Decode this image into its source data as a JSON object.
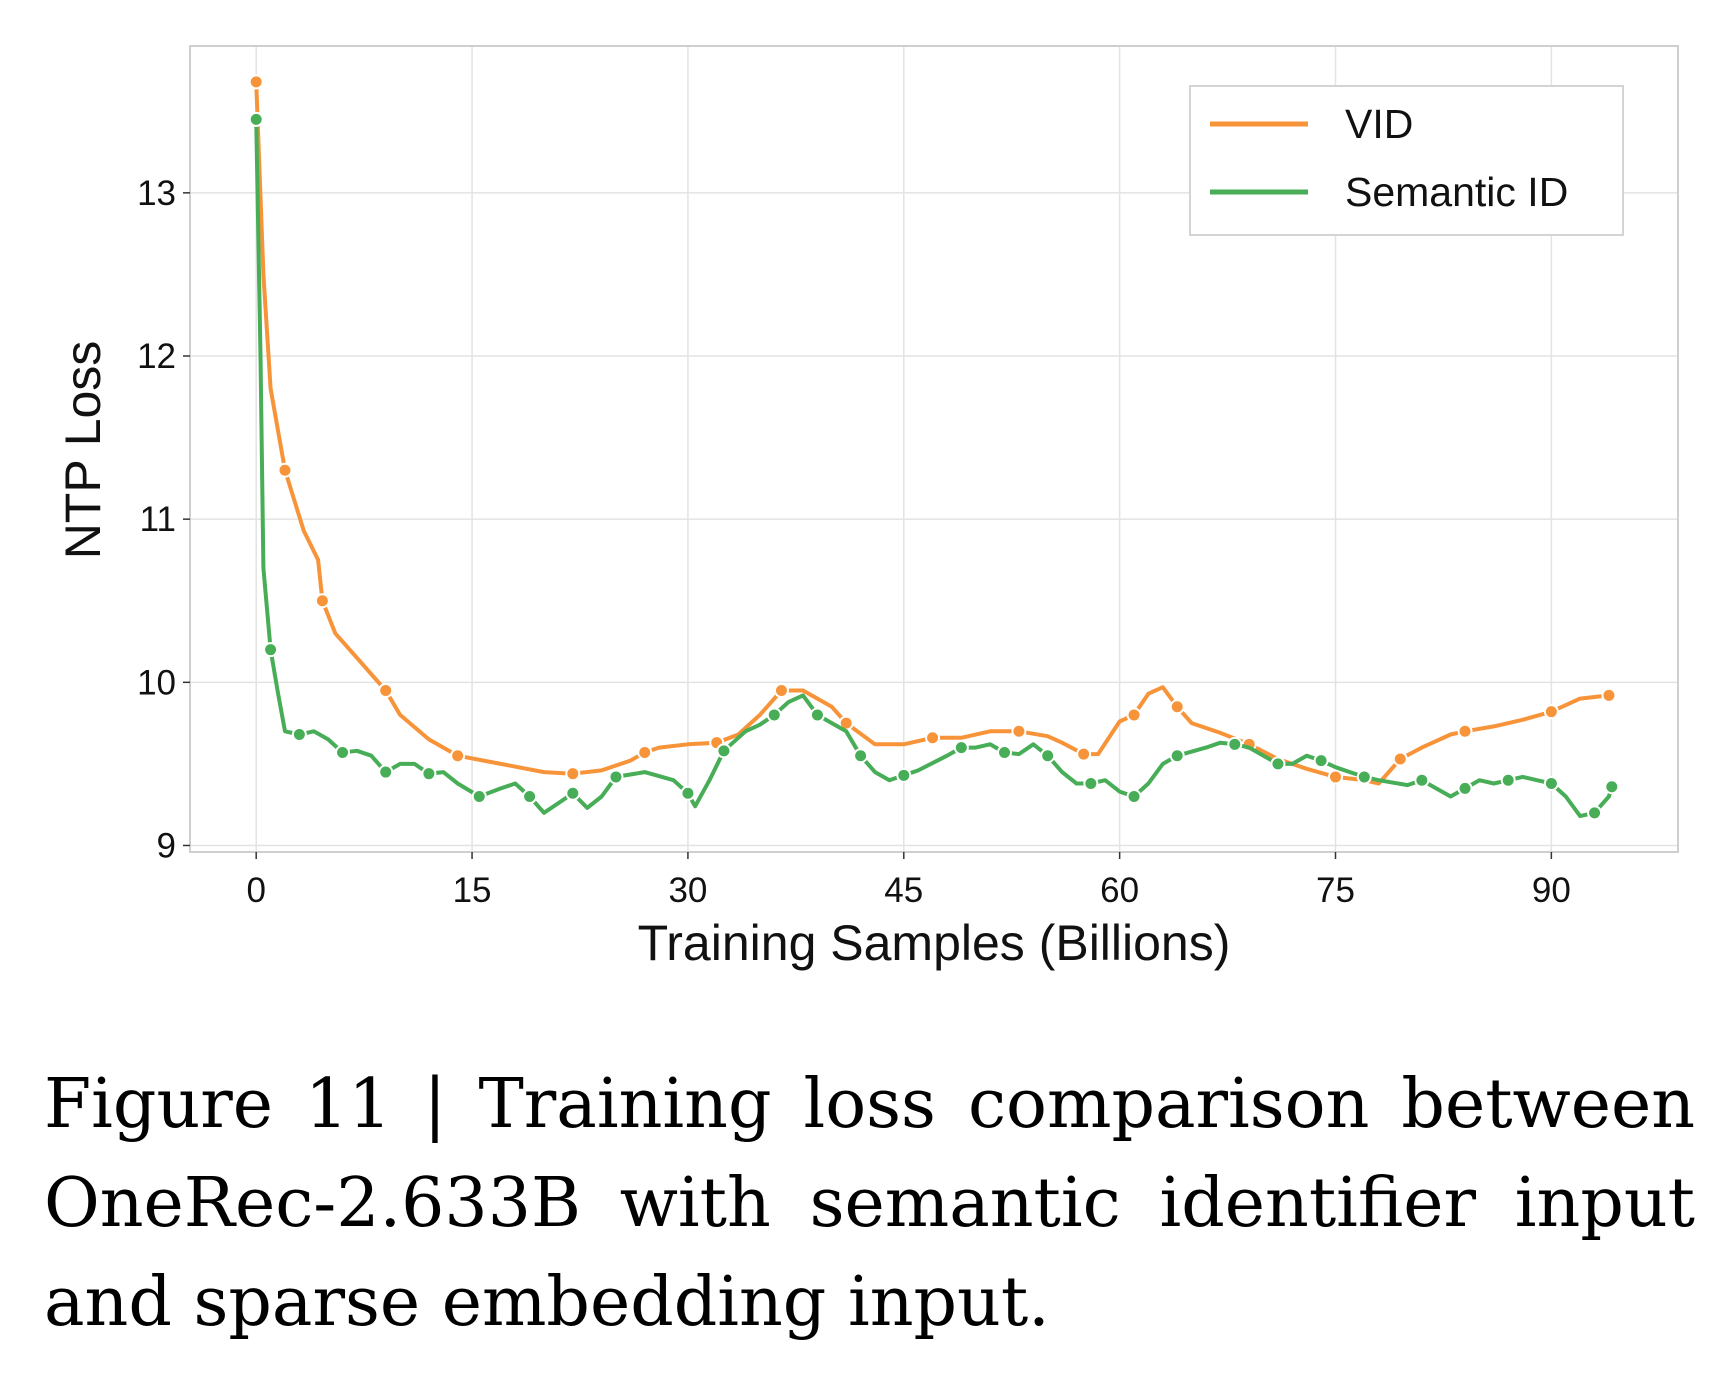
{
  "chart_data": {
    "type": "line",
    "title": "",
    "xlabel": "Training Samples (Billions)",
    "ylabel": "NTP Loss",
    "xlim": [
      -4.6,
      98.8
    ],
    "ylim": [
      8.96,
      13.9
    ],
    "xticks": [
      0,
      15,
      30,
      45,
      60,
      75,
      90
    ],
    "yticks": [
      9,
      10,
      11,
      12,
      13
    ],
    "grid": true,
    "legend_position": "top-right",
    "series": [
      {
        "name": "VID",
        "color": "#f7943a",
        "x": [
          0,
          0.5,
          1,
          2,
          3.3,
          4.3,
          4.6,
          5.5,
          7,
          9,
          10,
          12,
          14,
          17,
          20,
          22,
          24,
          26,
          27,
          28,
          30,
          32,
          33.5,
          35,
          36.5,
          38,
          40,
          41,
          43,
          45,
          47,
          49,
          51,
          53,
          55,
          56,
          57.5,
          58.5,
          60,
          61,
          62,
          63,
          64,
          65,
          67,
          69,
          71,
          73,
          75,
          77,
          78,
          79.5,
          81,
          83,
          84,
          86,
          88,
          90,
          92,
          94
        ],
        "y": [
          13.68,
          12.5,
          11.8,
          11.3,
          10.93,
          10.75,
          10.5,
          10.3,
          10.15,
          9.95,
          9.8,
          9.65,
          9.55,
          9.5,
          9.45,
          9.44,
          9.46,
          9.52,
          9.57,
          9.6,
          9.62,
          9.63,
          9.68,
          9.8,
          9.95,
          9.95,
          9.85,
          9.75,
          9.62,
          9.62,
          9.66,
          9.66,
          9.7,
          9.7,
          9.67,
          9.63,
          9.56,
          9.56,
          9.76,
          9.8,
          9.93,
          9.97,
          9.85,
          9.75,
          9.69,
          9.62,
          9.53,
          9.47,
          9.42,
          9.4,
          9.38,
          9.53,
          9.6,
          9.68,
          9.7,
          9.73,
          9.77,
          9.82,
          9.9,
          9.92
        ]
      },
      {
        "name": "Semantic ID",
        "color": "#48ad57",
        "x": [
          0,
          0.3,
          0.5,
          1,
          1.5,
          2,
          3,
          4,
          5,
          6,
          7,
          8,
          9,
          10,
          11,
          12,
          13,
          14,
          15.5,
          17,
          18,
          19,
          20,
          21,
          22,
          23,
          24,
          25,
          27,
          29,
          30,
          30.5,
          31.5,
          32.5,
          34,
          35,
          36,
          37,
          38,
          39,
          40,
          41,
          42,
          43,
          44,
          45,
          46,
          48,
          49,
          50,
          51,
          52,
          53,
          54,
          55,
          56,
          57,
          58,
          59,
          60,
          61,
          62,
          63,
          64,
          66,
          67,
          68,
          69,
          70,
          71,
          72,
          73,
          74,
          75,
          76,
          77,
          78,
          80,
          81,
          82,
          83,
          84,
          85,
          86,
          87,
          88,
          89,
          90,
          91,
          92,
          93,
          94,
          94.2
        ],
        "y": [
          13.45,
          12,
          10.7,
          10.2,
          9.94,
          9.7,
          9.68,
          9.7,
          9.65,
          9.57,
          9.58,
          9.55,
          9.45,
          9.5,
          9.5,
          9.44,
          9.45,
          9.38,
          9.3,
          9.35,
          9.38,
          9.3,
          9.2,
          9.26,
          9.32,
          9.23,
          9.3,
          9.42,
          9.45,
          9.4,
          9.32,
          9.24,
          9.4,
          9.58,
          9.7,
          9.74,
          9.8,
          9.88,
          9.92,
          9.8,
          9.75,
          9.7,
          9.55,
          9.45,
          9.4,
          9.43,
          9.46,
          9.55,
          9.6,
          9.6,
          9.62,
          9.57,
          9.56,
          9.62,
          9.55,
          9.45,
          9.38,
          9.38,
          9.4,
          9.33,
          9.3,
          9.38,
          9.5,
          9.55,
          9.6,
          9.63,
          9.62,
          9.6,
          9.55,
          9.5,
          9.5,
          9.55,
          9.52,
          9.48,
          9.45,
          9.42,
          9.4,
          9.37,
          9.4,
          9.35,
          9.3,
          9.35,
          9.4,
          9.38,
          9.4,
          9.42,
          9.4,
          9.38,
          9.3,
          9.18,
          9.2,
          9.3,
          9.36
        ]
      }
    ]
  },
  "caption": "Figure 11 | Training loss comparison between OneRec-2.633B with semantic identifier input and sparse embedding input."
}
